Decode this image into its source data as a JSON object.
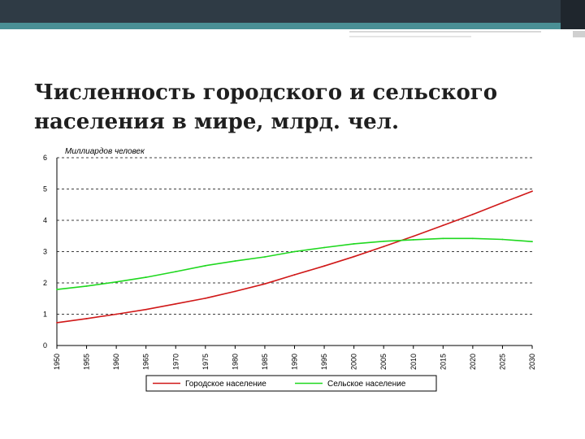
{
  "slide": {
    "title": "Численность городского и сельского\nнаселения в мире, млрд. чел."
  },
  "chart_data": {
    "type": "line",
    "ylabel": "Миллиардов человек",
    "ylim": [
      0,
      6
    ],
    "yticks": [
      0,
      1,
      2,
      3,
      4,
      5,
      6
    ],
    "x": [
      1950,
      1955,
      1960,
      1965,
      1970,
      1975,
      1980,
      1985,
      1990,
      1995,
      2000,
      2005,
      2010,
      2015,
      2020,
      2025,
      2030
    ],
    "series": [
      {
        "name": "Городское население",
        "color": "#d01818",
        "values": [
          0.73,
          0.86,
          1.0,
          1.15,
          1.33,
          1.51,
          1.73,
          1.97,
          2.26,
          2.54,
          2.84,
          3.16,
          3.49,
          3.84,
          4.19,
          4.56,
          4.93
        ]
      },
      {
        "name": "Сельское население",
        "color": "#1fd81f",
        "values": [
          1.79,
          1.9,
          2.03,
          2.18,
          2.36,
          2.55,
          2.7,
          2.83,
          3.0,
          3.13,
          3.25,
          3.33,
          3.38,
          3.42,
          3.42,
          3.39,
          3.32
        ]
      }
    ],
    "grid": true,
    "grid_style": "dashed",
    "legend_position": "bottom"
  }
}
